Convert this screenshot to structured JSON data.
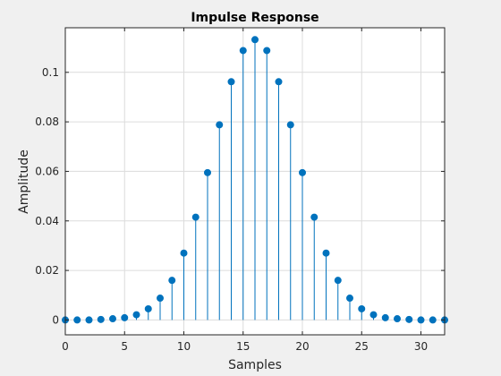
{
  "chart_data": {
    "type": "stem",
    "title": "Impulse Response",
    "xlabel": "Samples",
    "ylabel": "Amplitude",
    "xlim": [
      0,
      32
    ],
    "ylim": [
      -0.006,
      0.118
    ],
    "xticks": [
      0,
      5,
      10,
      15,
      20,
      25,
      30
    ],
    "yticks": [
      0,
      0.02,
      0.04,
      0.06,
      0.08,
      0.1
    ],
    "ytick_labels": [
      "0",
      "0.02",
      "0.04",
      "0.06",
      "0.08",
      "0.1"
    ],
    "grid": true,
    "marker": "filled-circle",
    "color": "#0072BD",
    "x": [
      0,
      1,
      2,
      3,
      4,
      5,
      6,
      7,
      8,
      9,
      10,
      11,
      12,
      13,
      14,
      15,
      16,
      17,
      18,
      19,
      20,
      21,
      22,
      23,
      24,
      25,
      26,
      27,
      28,
      29,
      30,
      31,
      32
    ],
    "y": [
      0,
      0,
      0,
      0.0002,
      0.0005,
      0.0009,
      0.0021,
      0.0045,
      0.0088,
      0.016,
      0.027,
      0.0415,
      0.0595,
      0.0788,
      0.0962,
      0.1088,
      0.1132,
      0.1088,
      0.0962,
      0.0788,
      0.0595,
      0.0415,
      0.027,
      0.016,
      0.0088,
      0.0045,
      0.0021,
      0.0009,
      0.0005,
      0.0002,
      0,
      0,
      0
    ]
  }
}
